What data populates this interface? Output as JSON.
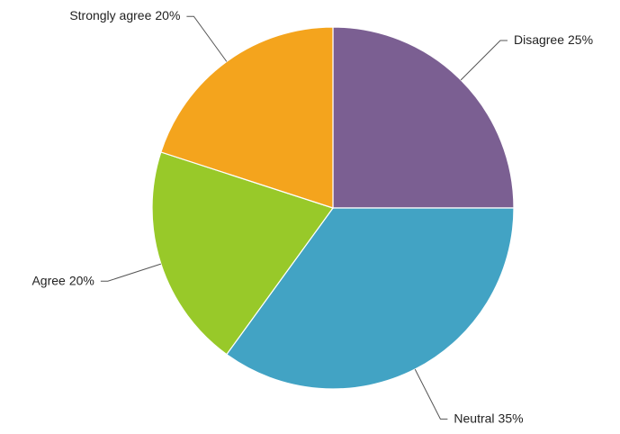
{
  "chart_data": {
    "type": "pie",
    "categories": [
      "Disagree",
      "Neutral",
      "Agree",
      "Strongly agree"
    ],
    "values": [
      25,
      35,
      20,
      20
    ],
    "value_labels": [
      "25%",
      "35%",
      "20%",
      "20%"
    ],
    "colors": [
      "#7b5f92",
      "#42a3c4",
      "#98c929",
      "#f4a41d"
    ]
  }
}
